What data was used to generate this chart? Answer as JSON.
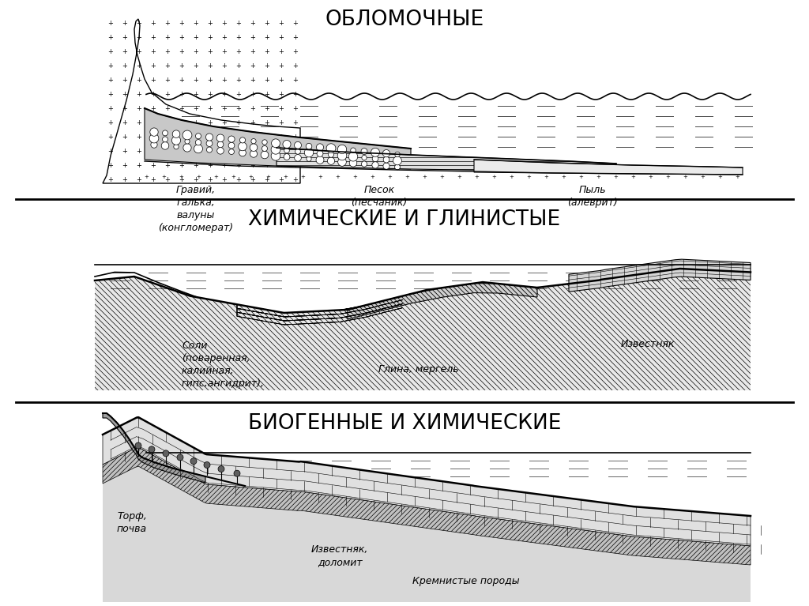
{
  "title1": "ОБЛОМОЧНЫЕ",
  "title2": "ХИМИЧЕСКИЕ И ГЛИНИСТЫЕ",
  "title3": "БИОГЕННЫЕ И ХИМИЧЕСКИЕ",
  "label1a": "Гравий,\nгалька,\nвалуны\n(конгломерат)",
  "label1b": "Песок\n(песчаник)",
  "label1c": "Пыль\n(алеврит)",
  "label2a": "Соли\n(поваренная,\nкалийная,\nгипс,ангидрит),",
  "label2b": "Глина, мергель",
  "label2c": "Известняк",
  "label3a": "Торф,\nпочва",
  "label3b": "Известняк,\nдоломит",
  "label3c": "Кремнистые породы",
  "sep_line_color": "#000000",
  "bg_color": "#ffffff"
}
